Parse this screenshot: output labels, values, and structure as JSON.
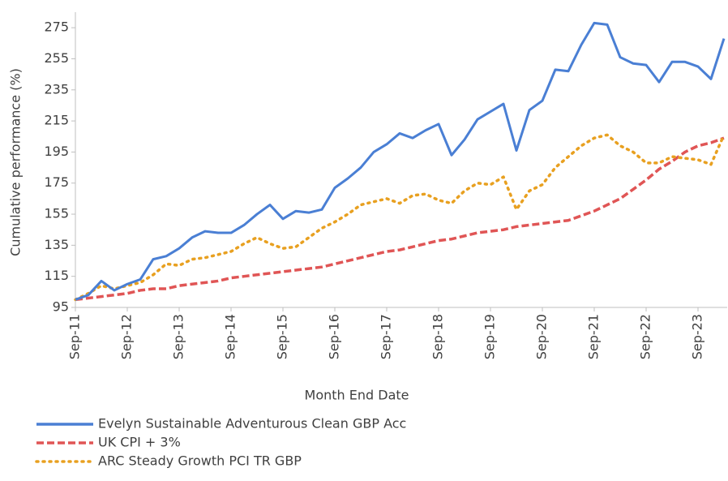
{
  "chart_data": {
    "type": "line",
    "x_label": "Month End Date",
    "y_label": "Cumulative performance (%)",
    "categories": [
      "Sep-11",
      null,
      null,
      null,
      "Sep-12",
      null,
      null,
      null,
      "Sep-13",
      null,
      null,
      null,
      "Sep-14",
      null,
      null,
      null,
      "Sep-15",
      null,
      null,
      null,
      "Sep-16",
      null,
      null,
      null,
      "Sep-17",
      null,
      null,
      null,
      "Sep-18",
      null,
      null,
      null,
      "Sep-19",
      null,
      null,
      null,
      "Sep-20",
      null,
      null,
      null,
      "Sep-21",
      null,
      null,
      null,
      "Sep-22",
      null,
      null,
      null,
      "Sep-23",
      null,
      null
    ],
    "series": [
      {
        "name": "Evelyn Sustainable Adventurous Clean GBP Acc",
        "color": "#4a7fd4",
        "style": "solid",
        "values": [
          100,
          103,
          112,
          106,
          110,
          113,
          126,
          128,
          133,
          140,
          144,
          143,
          143,
          148,
          155,
          161,
          152,
          157,
          156,
          158,
          172,
          178,
          185,
          195,
          200,
          207,
          204,
          209,
          213,
          193,
          203,
          216,
          221,
          226,
          196,
          222,
          228,
          248,
          247,
          264,
          278,
          277,
          256,
          252,
          251,
          240,
          253,
          253,
          250,
          242,
          268
        ]
      },
      {
        "name": "UK CPI + 3%",
        "color": "#e05555",
        "style": "dashed",
        "values": [
          100,
          101,
          102,
          103,
          104,
          106,
          107,
          107,
          109,
          110,
          111,
          112,
          114,
          115,
          116,
          117,
          118,
          119,
          120,
          121,
          123,
          125,
          127,
          129,
          131,
          132,
          134,
          136,
          138,
          139,
          141,
          143,
          144,
          145,
          147,
          148,
          149,
          150,
          151,
          154,
          157,
          161,
          165,
          171,
          177,
          184,
          189,
          195,
          199,
          201,
          204
        ]
      },
      {
        "name": "ARC Steady Growth PCI TR GBP",
        "color": "#e8a020",
        "style": "dotted",
        "values": [
          100,
          104,
          109,
          107,
          109,
          111,
          116,
          123,
          122,
          126,
          127,
          129,
          131,
          136,
          140,
          136,
          133,
          134,
          140,
          146,
          150,
          155,
          161,
          163,
          165,
          162,
          167,
          168,
          164,
          162,
          170,
          175,
          174,
          179,
          158,
          170,
          174,
          185,
          192,
          199,
          204,
          206,
          199,
          195,
          188,
          188,
          192,
          191,
          190,
          187,
          206
        ]
      }
    ],
    "ylim": [
      95,
      285
    ],
    "yticks": [
      95,
      115,
      135,
      155,
      175,
      195,
      215,
      235,
      255,
      275
    ],
    "grid": false
  }
}
